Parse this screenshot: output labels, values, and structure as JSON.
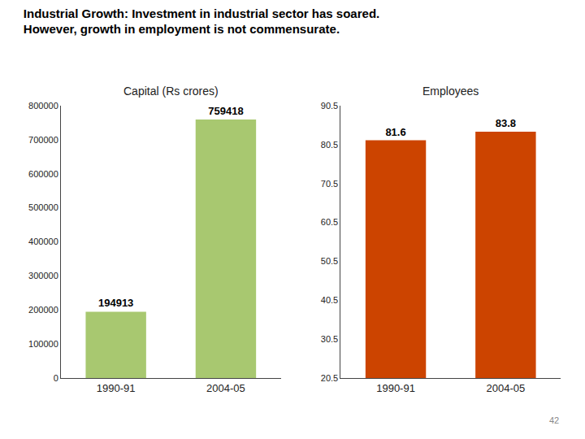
{
  "title": "Industrial Growth: Investment in industrial sector has soared.",
  "subtitle": "However, growth in employment is not commensurate.",
  "annotations": [
    "42"
  ],
  "chart_data": [
    {
      "type": "bar",
      "title": "Capital (Rs crores)",
      "categories": [
        "1990-91",
        "2004-05"
      ],
      "values": [
        194913,
        759418
      ],
      "color": "#a8c870",
      "ylim": [
        0,
        800000
      ],
      "yticks": [
        0,
        100000,
        200000,
        300000,
        400000,
        500000,
        600000,
        700000,
        800000
      ],
      "grid": false,
      "data_labels": true
    },
    {
      "type": "bar",
      "title": "Employees",
      "categories": [
        "1990-91",
        "2004-05"
      ],
      "values": [
        81.6,
        83.8
      ],
      "color": "#cc4400",
      "ylim": [
        20.5,
        90.5
      ],
      "yticks": [
        20.5,
        30.5,
        40.5,
        50.5,
        60.5,
        70.5,
        80.5,
        90.5
      ],
      "grid": false,
      "data_labels": true
    }
  ]
}
